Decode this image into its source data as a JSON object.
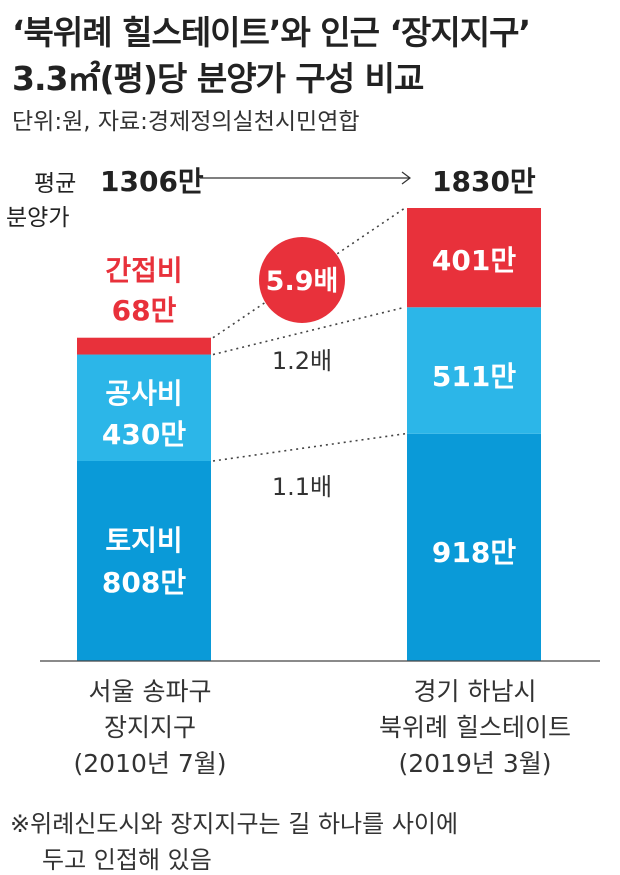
{
  "header": {
    "title_line1": "‘북위례 힐스테이트’와 인근 ‘장지지구’",
    "title_line2": "3.3㎡(평)당 분양가 구성 비교",
    "unit_source": "단위:원, 자료:경제정의실천시민연합"
  },
  "average": {
    "label_line1": "평균",
    "label_line2": "분양가",
    "left_value": "1306만",
    "right_value": "1830만"
  },
  "colors": {
    "land": "#0a9ad8",
    "construction": "#2cb6e8",
    "indirect": "#e8313b",
    "ratio_circle": "#e8313b"
  },
  "chart_data": {
    "type": "bar",
    "stacked": true,
    "categories": [
      "서울 송파구 장지지구 (2010년 7월)",
      "경기 하남시 북위례 힐스테이트 (2019년 3월)"
    ],
    "totals": [
      1306,
      1830
    ],
    "series": [
      {
        "name": "토지비",
        "values": [
          808,
          918
        ],
        "labels": [
          "808만",
          "918만"
        ]
      },
      {
        "name": "공사비",
        "values": [
          430,
          511
        ],
        "labels": [
          "430만",
          "511만"
        ]
      },
      {
        "name": "간접비",
        "values": [
          68,
          401
        ],
        "labels": [
          "68만",
          "401만"
        ]
      }
    ],
    "ratios": [
      {
        "between": "토지비",
        "text": "1.1배"
      },
      {
        "between": "공사비",
        "text": "1.2배"
      },
      {
        "between": "간접비",
        "text": "5.9배"
      }
    ],
    "ylim": [
      0,
      1830
    ]
  },
  "categories": {
    "left": {
      "line1": "서울 송파구",
      "line2": "장지지구",
      "line3": "(2010년 7월)"
    },
    "right": {
      "line1": "경기 하남시",
      "line2": "북위례 힐스테이트",
      "line3": "(2019년 3월)"
    }
  },
  "left_indirect_label": {
    "line1": "간접비",
    "line2": "68만"
  },
  "left_construction_label": {
    "line1": "공사비",
    "line2": "430만"
  },
  "left_land_label": {
    "line1": "토지비",
    "line2": "808만"
  },
  "footnote": {
    "line1": "※위례신도시와 장지지구는 길 하나를 사이에",
    "line2": "두고 인접해 있음"
  }
}
